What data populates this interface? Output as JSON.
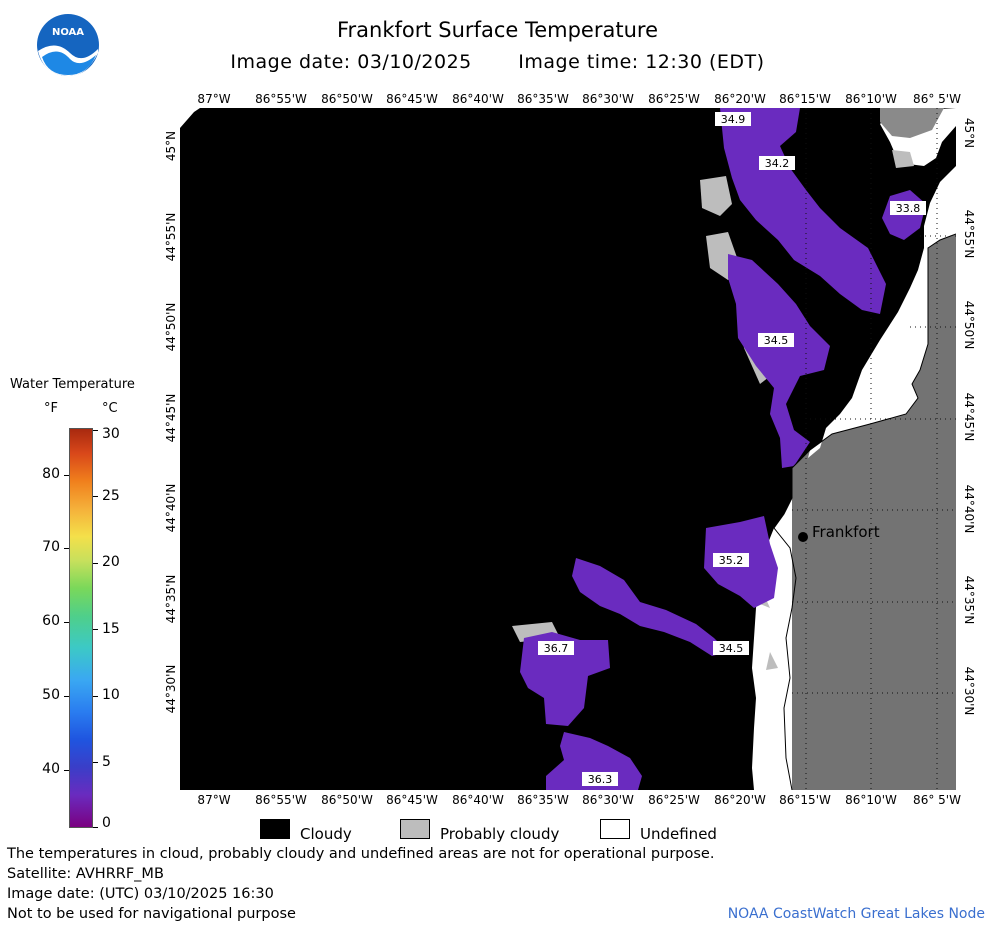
{
  "header": {
    "title": "Frankfort Surface Temperature",
    "image_date_label": "Image date: 03/10/2025",
    "image_time_label": "Image time: 12:30 (EDT)"
  },
  "axes": {
    "longitude_labels": [
      "87°W",
      "86°55'W",
      "86°50'W",
      "86°45'W",
      "86°40'W",
      "86°35'W",
      "86°30'W",
      "86°25'W",
      "86°20'W",
      "86°15'W",
      "86°10'W",
      "86° 5'W"
    ],
    "latitude_labels": [
      "45°N",
      "44°55'N",
      "44°50'N",
      "44°45'N",
      "44°40'N",
      "44°35'N",
      "44°30'N"
    ]
  },
  "map": {
    "city_label": "Frankfort",
    "temperature_labels": [
      "34.9",
      "34.2",
      "33.8",
      "34.5",
      "35.2",
      "36.7",
      "34.5",
      "36.3"
    ],
    "colors": {
      "cloud": "#000000",
      "probably_cloudy": "#bdbdbd",
      "undefined": "#ffffff",
      "land": "#737373",
      "water_temp": "#6a2bbf"
    }
  },
  "legend": {
    "title": "Water Temperature",
    "unit_f": "°F",
    "unit_c": "°C",
    "f_ticks": [
      "80",
      "70",
      "60",
      "50",
      "40"
    ],
    "c_ticks": [
      "30",
      "25",
      "20",
      "15",
      "10",
      "5",
      "0"
    ],
    "keys": {
      "cloudy": "Cloudy",
      "probably_cloudy": "Probably cloudy",
      "undefined": "Undefined"
    }
  },
  "footer": {
    "disclaimer": "The temperatures in cloud, probably cloudy and undefined areas are not for operational purpose.",
    "satellite": "Satellite: AVHRRF_MB",
    "utc_date": "Image date: (UTC) 03/10/2025  16:30",
    "nav_warning": "Not to be used for navigational purpose",
    "credit": "NOAA CoastWatch Great Lakes Node"
  }
}
